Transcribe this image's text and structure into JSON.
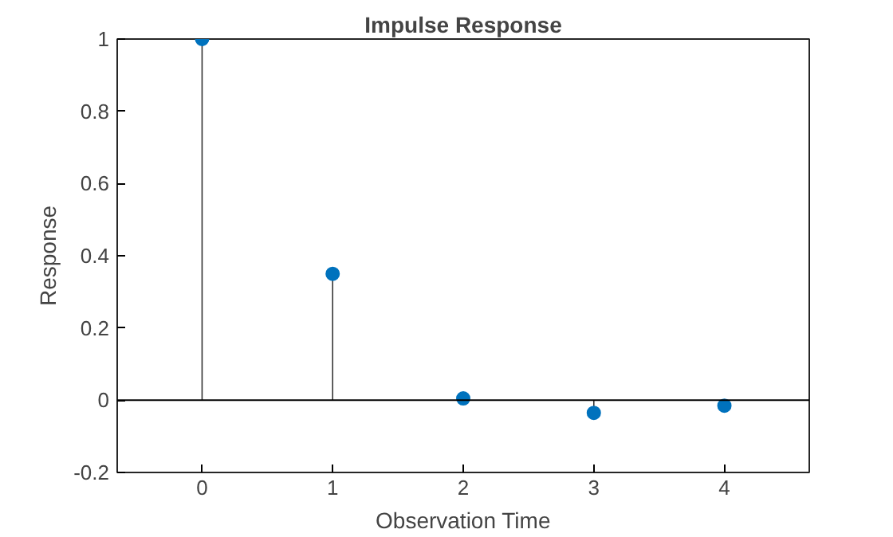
{
  "chart_data": {
    "type": "lollipop",
    "title": "Impulse Response",
    "xlabel": "Observation Time",
    "ylabel": "Response",
    "x": [
      0,
      1,
      2,
      3,
      4
    ],
    "series": [
      {
        "color": "#0072bd",
        "values": [
          1,
          0.35,
          0.005,
          -0.035,
          -0.015
        ]
      }
    ],
    "xlim": [
      -0.65,
      4.65
    ],
    "xticks": [
      0,
      1,
      2,
      3,
      4
    ],
    "ylim": [
      -0.2,
      1
    ],
    "yticks": [
      -0.2,
      0,
      0.2,
      0.4,
      0.6,
      0.8,
      1
    ],
    "ref_lines": [
      {
        "axis": "y",
        "value": 0,
        "color": "#000000"
      }
    ],
    "marker": "circle",
    "grid": false
  }
}
